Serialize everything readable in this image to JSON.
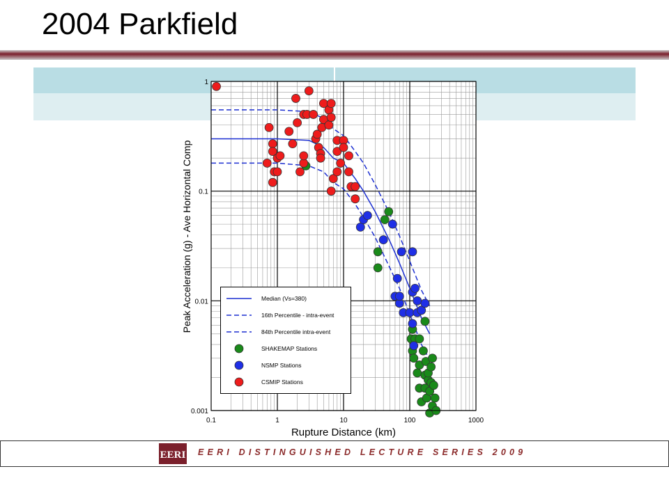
{
  "slide_title": "2004 Parkfield",
  "footer": {
    "logo": "EERI",
    "text": "EERI DISTINGUISHED LECTURE SERIES 2009"
  },
  "chart_data": {
    "type": "scatter",
    "x_label": "Rupture Distance (km)",
    "y_label": "Peak Acceleration (g) - Ave Horizontal Comp",
    "log_x": true,
    "log_y": true,
    "grid": true,
    "minor_grid": true,
    "xlim": [
      0.1,
      1000
    ],
    "ylim": [
      0.001,
      1
    ],
    "xticks": [
      0.1,
      1,
      10,
      100,
      1000
    ],
    "yticks": [
      0.001,
      0.01,
      0.1,
      1
    ],
    "series": [
      {
        "name": "Median (Vs=380)",
        "mode": "line",
        "dash": false,
        "color": "#1c2fd1",
        "x": [
          0.1,
          0.3,
          1,
          3,
          5,
          7,
          10,
          15,
          20,
          30,
          50,
          70,
          100,
          150,
          200
        ],
        "values": [
          0.3,
          0.3,
          0.3,
          0.29,
          0.25,
          0.2,
          0.18,
          0.13,
          0.1,
          0.065,
          0.035,
          0.022,
          0.013,
          0.007,
          0.005
        ]
      },
      {
        "name": "16th Percentile - intra-event",
        "mode": "line",
        "dash": true,
        "color": "#1c2fd1",
        "x": [
          0.1,
          0.3,
          1,
          3,
          5,
          7,
          10,
          15,
          20,
          30,
          50,
          70,
          100,
          150,
          200
        ],
        "values": [
          0.18,
          0.18,
          0.18,
          0.17,
          0.15,
          0.12,
          0.105,
          0.076,
          0.058,
          0.038,
          0.02,
          0.013,
          0.0076,
          0.004,
          0.0029
        ]
      },
      {
        "name": "84th Percentile intra-event",
        "mode": "line",
        "dash": true,
        "color": "#1c2fd1",
        "x": [
          0.1,
          0.3,
          1,
          3,
          5,
          7,
          10,
          15,
          20,
          30,
          50,
          70,
          100,
          150,
          200
        ],
        "values": [
          0.55,
          0.55,
          0.55,
          0.53,
          0.46,
          0.37,
          0.32,
          0.23,
          0.18,
          0.115,
          0.062,
          0.039,
          0.023,
          0.0125,
          0.009
        ]
      },
      {
        "name": "SHAKEMAP Stations",
        "mode": "marker",
        "color": "#1a8a1a",
        "x": [
          2.7,
          33,
          33,
          42,
          48,
          105,
          110,
          110,
          115,
          120,
          130,
          140,
          140,
          140,
          150,
          160,
          170,
          170,
          170,
          175,
          180,
          190,
          190,
          200,
          200,
          210,
          210,
          220,
          220,
          230,
          240,
          250
        ],
        "values": [
          0.17,
          0.028,
          0.02,
          0.055,
          0.065,
          0.0045,
          0.0055,
          0.0035,
          0.003,
          0.0045,
          0.0022,
          0.0045,
          0.0026,
          0.0016,
          0.0012,
          0.0035,
          0.0065,
          0.0016,
          0.0021,
          0.0028,
          0.0013,
          0.0019,
          0.0022,
          0.00095,
          0.0015,
          0.0025,
          0.0018,
          0.003,
          0.0011,
          0.0017,
          0.0013,
          0.001
        ]
      },
      {
        "name": "NSMP Stations",
        "mode": "marker",
        "color": "#1f2fe6",
        "x": [
          18,
          20,
          23,
          40,
          55,
          65,
          60,
          70,
          70,
          75,
          80,
          100,
          110,
          110,
          110,
          115,
          120,
          130,
          130,
          150,
          170
        ],
        "values": [
          0.047,
          0.055,
          0.06,
          0.036,
          0.05,
          0.016,
          0.011,
          0.0095,
          0.011,
          0.028,
          0.0078,
          0.0078,
          0.028,
          0.012,
          0.0062,
          0.0039,
          0.013,
          0.01,
          0.0078,
          0.0082,
          0.0095
        ]
      },
      {
        "name": "CSMIP Stations",
        "mode": "marker",
        "color": "#ee1c1c",
        "x": [
          0.12,
          0.75,
          0.7,
          0.85,
          0.85,
          0.9,
          0.85,
          1,
          1,
          1.1,
          1.5,
          1.7,
          2,
          1.9,
          2.2,
          2.5,
          2.5,
          2.5,
          2.8,
          3,
          3.5,
          3.8,
          4,
          4.2,
          4.5,
          4.5,
          4.7,
          5,
          5,
          6,
          6,
          6.5,
          6.5,
          6.5,
          7,
          8,
          8,
          8,
          9,
          10,
          10,
          12,
          12,
          13,
          15,
          15
        ],
        "values": [
          0.9,
          0.38,
          0.18,
          0.27,
          0.23,
          0.15,
          0.12,
          0.15,
          0.2,
          0.21,
          0.35,
          0.27,
          0.42,
          0.7,
          0.15,
          0.18,
          0.21,
          0.5,
          0.5,
          0.82,
          0.5,
          0.3,
          0.33,
          0.25,
          0.22,
          0.2,
          0.38,
          0.63,
          0.45,
          0.4,
          0.55,
          0.63,
          0.47,
          0.1,
          0.13,
          0.29,
          0.23,
          0.15,
          0.18,
          0.29,
          0.25,
          0.21,
          0.15,
          0.11,
          0.11,
          0.085
        ]
      }
    ]
  }
}
